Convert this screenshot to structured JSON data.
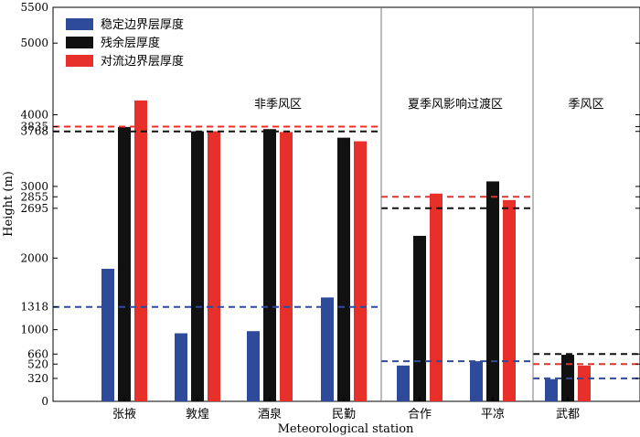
{
  "chart_data": {
    "type": "bar",
    "title": "",
    "xlabel": "Meteorological  station",
    "ylabel": "Height (m)",
    "ylim": [
      0,
      5500
    ],
    "yticks": [
      0,
      320,
      520,
      660,
      1000,
      1318,
      2000,
      2695,
      2855,
      3000,
      3768,
      3835,
      4000,
      5000,
      5500
    ],
    "categories": [
      "张掖",
      "敦煌",
      "酒泉",
      "民勤",
      "合作",
      "平凉",
      "武都"
    ],
    "series": [
      {
        "name": "稳定边界层厚度",
        "color": "#2e4a9b",
        "values": [
          1850,
          950,
          980,
          1450,
          500,
          560,
          310
        ]
      },
      {
        "name": "残余层厚度",
        "color": "#111111",
        "values": [
          3830,
          3770,
          3800,
          3680,
          2310,
          3070,
          650
        ]
      },
      {
        "name": "对流边界层厚度",
        "color": "#e8302a",
        "values": [
          4200,
          3770,
          3760,
          3630,
          2900,
          2810,
          500
        ]
      }
    ],
    "regions": [
      {
        "label": "非季风区",
        "categories": [
          "张掖",
          "敦煌",
          "酒泉",
          "民勤"
        ]
      },
      {
        "label": "夏季风影响过渡区",
        "categories": [
          "合作",
          "平凉"
        ]
      },
      {
        "label": "季风区",
        "categories": [
          "武都"
        ]
      }
    ],
    "reference_lines": [
      {
        "region": 0,
        "series": 0,
        "value": 1318
      },
      {
        "region": 0,
        "series": 1,
        "value": 3768
      },
      {
        "region": 0,
        "series": 2,
        "value": 3835
      },
      {
        "region": 1,
        "series": 0,
        "value": 560
      },
      {
        "region": 1,
        "series": 1,
        "value": 2695
      },
      {
        "region": 1,
        "series": 2,
        "value": 2855
      },
      {
        "region": 2,
        "series": 0,
        "value": 320
      },
      {
        "region": 2,
        "series": 1,
        "value": 660
      },
      {
        "region": 2,
        "series": 2,
        "value": 520
      }
    ],
    "legend_position": "top-left"
  }
}
